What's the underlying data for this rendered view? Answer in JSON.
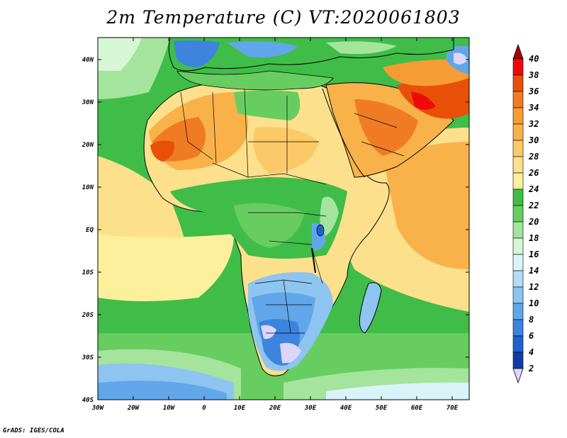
{
  "title": "2m Temperature (C) VT:2020061803",
  "credit": "GrADS: IGES/COLA",
  "map": {
    "lon_labels": [
      "30W",
      "20W",
      "10W",
      "0",
      "10E",
      "20E",
      "30E",
      "40E",
      "50E",
      "60E",
      "70E"
    ],
    "lat_labels": [
      "40N",
      "30N",
      "20N",
      "10N",
      "EQ",
      "10S",
      "20S",
      "30S",
      "40S"
    ]
  },
  "colorbar": {
    "labels": [
      "40",
      "38",
      "36",
      "34",
      "32",
      "30",
      "28",
      "26",
      "24",
      "22",
      "20",
      "18",
      "16",
      "14",
      "12",
      "10",
      "8",
      "6",
      "4",
      "2"
    ],
    "colors": [
      "#ee0a08",
      "#e8500a",
      "#ef7c24",
      "#f59c34",
      "#f9b24a",
      "#fbc968",
      "#fde08c",
      "#fdf09c",
      "#3fbd48",
      "#67cd60",
      "#a4e49c",
      "#d6f6d4",
      "#d9f4f8",
      "#b3dcf6",
      "#8ec4f0",
      "#62a6ea",
      "#3d84de",
      "#2161cf",
      "#113ca8"
    ],
    "top_color": "#a90000",
    "bottom_color": "#dcd6fb"
  }
}
